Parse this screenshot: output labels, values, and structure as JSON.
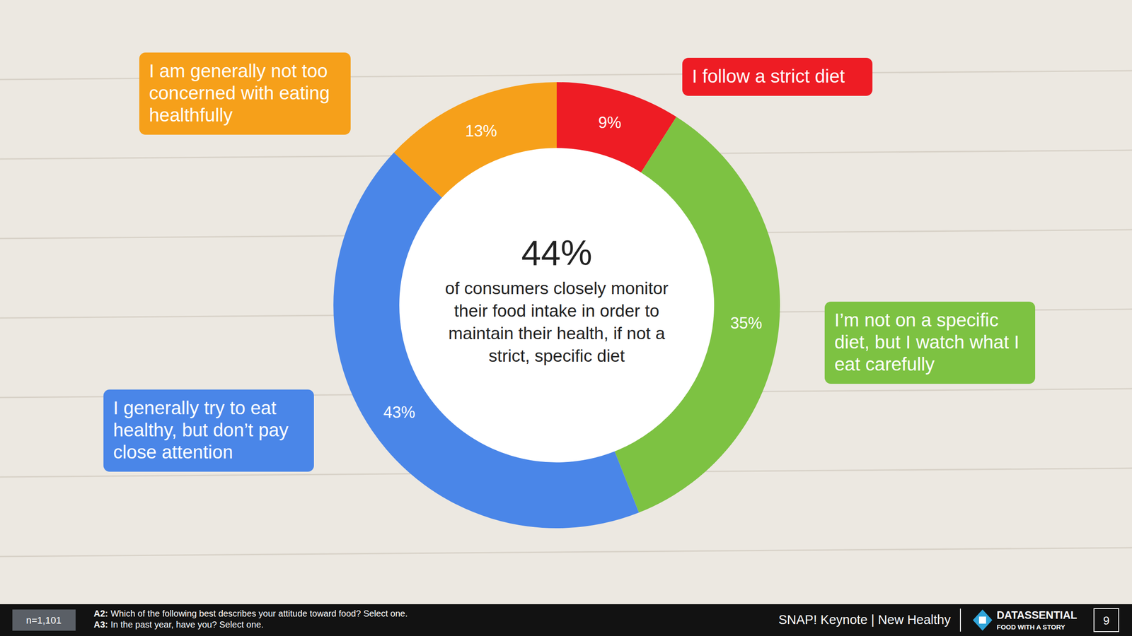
{
  "chart_data": {
    "type": "pie",
    "categories": [
      "I follow a strict diet",
      "I’m not on a specific diet, but I watch what I eat carefully",
      "I generally try to eat healthy, but don’t pay close attention",
      "I am generally not too concerned with eating healthfully"
    ],
    "values": [
      9,
      35,
      43,
      13
    ],
    "value_labels": [
      "9%",
      "35%",
      "43%",
      "13%"
    ],
    "colors": [
      "#ee1c24",
      "#7dc242",
      "#4a86e8",
      "#f6a01a"
    ],
    "data_labels": true,
    "annotations": [
      {
        "label": "44%",
        "text": "of consumers closely monitor their food intake in order to maintain their health, if not a strict, specific diet"
      }
    ]
  },
  "footer": {
    "sample": "n=1,101",
    "notes": [
      {
        "key": "A2:",
        "text": "Which of the following best describes your attitude toward food? Select one."
      },
      {
        "key": "A3:",
        "text": "In the past year, have you? Select one."
      }
    ],
    "source": "SNAP! Keynote | New Healthy",
    "brand": "DATASSENTIAL",
    "tagline": "FOOD WITH A STORY",
    "page": 9
  }
}
